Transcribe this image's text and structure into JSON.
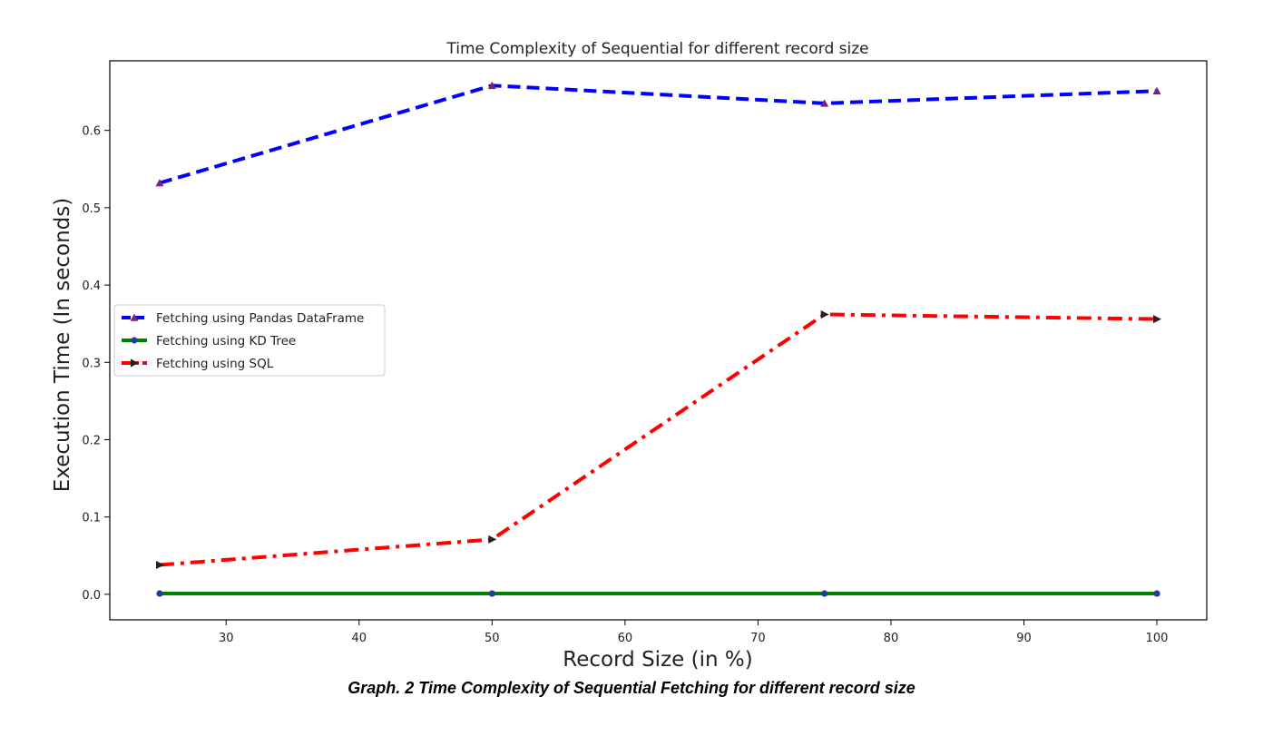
{
  "chart_data": {
    "type": "line",
    "title": "Time Complexity of Sequential for different record size",
    "xlabel": "Record Size (in %)",
    "ylabel": "Execution Time (In seconds)",
    "x": [
      25,
      50,
      75,
      100
    ],
    "xlim": [
      21.25,
      103.75
    ],
    "ylim": [
      -0.033,
      0.69
    ],
    "xticks": [
      30,
      40,
      50,
      60,
      70,
      80,
      90,
      100
    ],
    "yticks": [
      0.0,
      0.1,
      0.2,
      0.3,
      0.4,
      0.5,
      0.6
    ],
    "ytick_labels": [
      "0.0",
      "0.1",
      "0.2",
      "0.3",
      "0.4",
      "0.5",
      "0.6"
    ],
    "grid": false,
    "legend_position": "center-left",
    "series": [
      {
        "name": "Fetching using Pandas DataFrame",
        "values": [
          0.532,
          0.658,
          0.635,
          0.651
        ],
        "color": "#0000ff",
        "linestyle": "dashed",
        "marker": "triangle-up",
        "marker_color": "#7f1f7f"
      },
      {
        "name": "Fetching using KD Tree",
        "values": [
          0.001,
          0.001,
          0.001,
          0.001
        ],
        "color": "#008000",
        "linestyle": "solid",
        "marker": "circle",
        "marker_color": "#1f3fa0"
      },
      {
        "name": "Fetching using SQL",
        "values": [
          0.038,
          0.071,
          0.362,
          0.356
        ],
        "color": "#ff0000",
        "linestyle": "dashdot",
        "marker": "triangle-right",
        "marker_color": "#222222"
      }
    ]
  },
  "caption": "Graph. 2 Time Complexity of Sequential Fetching for different record size"
}
